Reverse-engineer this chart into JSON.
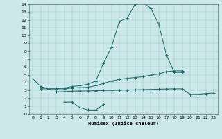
{
  "xlabel": "Humidex (Indice chaleur)",
  "background_color": "#cce8ea",
  "line_color": "#1e6b6b",
  "xlim": [
    -0.5,
    23.5
  ],
  "ylim": [
    0,
    14
  ],
  "xticks": [
    0,
    1,
    2,
    3,
    4,
    5,
    6,
    7,
    8,
    9,
    10,
    11,
    12,
    13,
    14,
    15,
    16,
    17,
    18,
    19,
    20,
    21,
    22,
    23
  ],
  "yticks": [
    0,
    1,
    2,
    3,
    4,
    5,
    6,
    7,
    8,
    9,
    10,
    11,
    12,
    13,
    14
  ],
  "series": [
    {
      "x": [
        0,
        1,
        2,
        3,
        4,
        5,
        6,
        7,
        8,
        9,
        10,
        11,
        12,
        13,
        14,
        15,
        16,
        17,
        18,
        19
      ],
      "y": [
        4.5,
        3.5,
        3.2,
        3.2,
        3.3,
        3.5,
        3.6,
        3.8,
        4.2,
        6.5,
        8.5,
        11.8,
        12.2,
        14.0,
        14.2,
        13.5,
        11.5,
        7.5,
        5.3,
        5.3
      ]
    },
    {
      "x": [
        1,
        2,
        3,
        4,
        5,
        6,
        7,
        8,
        9,
        10,
        11,
        12,
        13,
        14,
        15,
        16,
        17,
        18,
        19
      ],
      "y": [
        3.2,
        3.2,
        3.2,
        3.2,
        3.3,
        3.35,
        3.4,
        3.6,
        3.9,
        4.2,
        4.4,
        4.55,
        4.65,
        4.75,
        4.95,
        5.1,
        5.4,
        5.5,
        5.5
      ]
    },
    {
      "x": [
        4,
        5,
        6,
        7,
        8,
        9
      ],
      "y": [
        1.5,
        1.5,
        0.8,
        0.5,
        0.5,
        1.2
      ]
    },
    {
      "x": [
        3,
        4,
        5,
        6,
        7,
        8,
        9,
        10,
        11,
        12,
        13,
        14,
        15,
        16,
        17,
        18,
        19,
        20,
        21,
        22,
        23
      ],
      "y": [
        2.8,
        2.85,
        2.9,
        2.92,
        2.94,
        2.96,
        2.98,
        3.0,
        3.02,
        3.05,
        3.07,
        3.1,
        3.12,
        3.15,
        3.18,
        3.2,
        3.2,
        2.5,
        2.5,
        2.6,
        2.65
      ]
    }
  ]
}
